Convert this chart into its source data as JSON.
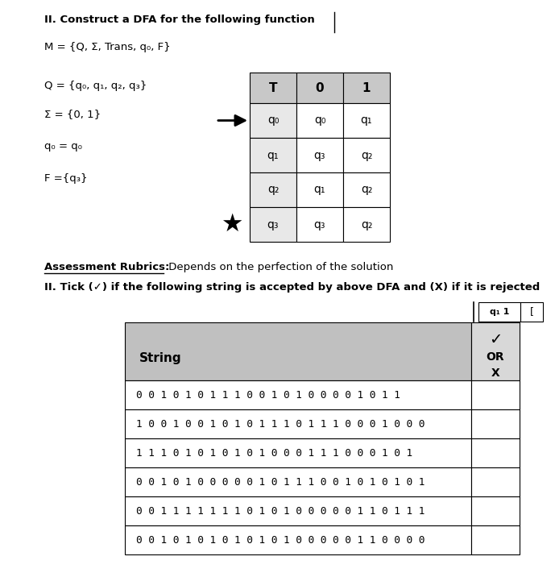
{
  "title_line1": "II. Construct a DFA for the following function",
  "m_def": "M = {Q, Σ, Trans, q₀, F}",
  "q_def": "Q = {q₀, q₁, q₂, q₃}",
  "sigma_def": "Σ = {0, 1}",
  "q0_def": "q₀ = q₀",
  "f_def": "F ={q₃}",
  "table_header": [
    "T",
    "0",
    "1"
  ],
  "table_rows": [
    [
      "q₀",
      "q₀",
      "q₁"
    ],
    [
      "q₁",
      "q₃",
      "q₂"
    ],
    [
      "q₂",
      "q₁",
      "q₂"
    ],
    [
      "q₃",
      "q₃",
      "q₂"
    ]
  ],
  "rubric_bold": "Assessment Rubrics:",
  "rubric_rest": " Depends on the perfection of the solution",
  "tick_line": "II. Tick (✓) if the following string is accepted by above DFA and (X) if it is rejected",
  "col2_header_line1": "✓",
  "col2_header_line2": "OR",
  "col2_header_line3": "X",
  "col1_header": "String",
  "strings": [
    "0 0 1 0 1 0 1 1 1 0 0 1 0 1 0 0 0 0 1 0 1 1",
    "1 0 0 1 0 0 1 0 1 0 1 1 1 0 1 1 1 0 0 0 1 0 0 0",
    "1 1 1 0 1 0 1 0 1 0 1 0 0 0 1 1 1 0 0 0 1 0 1",
    "0 0 1 0 1 0 0 0 0 0 1 0 1 1 1 0 0 1 0 1 0 1 0 1",
    "0 0 1 1 1 1 1 1 1 0 1 0 1 0 0 0 0 0 1 1 0 1 1 1",
    "0 0 1 0 1 0 1 0 1 0 1 0 1 0 0 0 0 0 1 1 0 0 0 0"
  ],
  "header_bg": "#c8c8c8",
  "white": "#ffffff",
  "gray_cell": "#e8e8e8",
  "bg_color": "#ffffff",
  "table2_col1_bg": "#c0c0c0",
  "table2_col2_bg": "#d8d8d8"
}
